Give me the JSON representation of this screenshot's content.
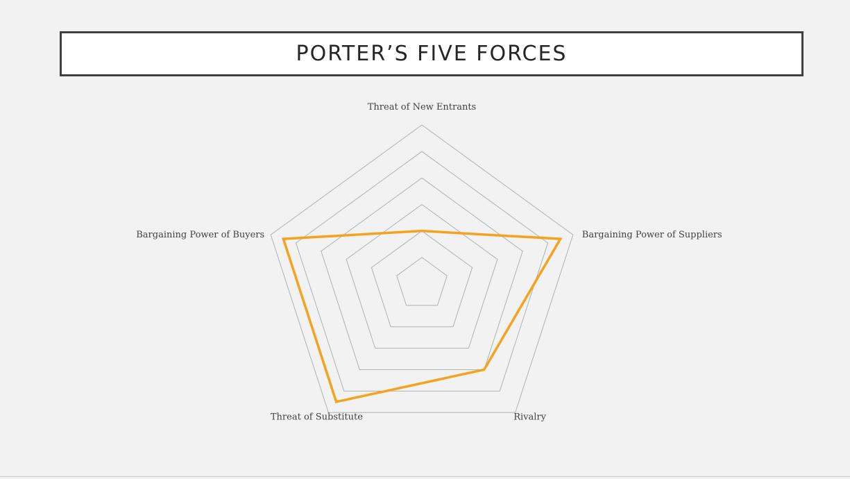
{
  "slide": {
    "title": "PORTER’S FIVE FORCES"
  },
  "chart_data": {
    "type": "radar",
    "categories": [
      "Threat of New Entrants",
      "Bargaining Power of Suppliers",
      "Rivalry",
      "Threat of Substitute",
      "Bargaining Power of Buyers"
    ],
    "series": [
      {
        "values": [
          2,
          5.5,
          4,
          5.5,
          5.5
        ],
        "color": "#f5a31f"
      }
    ],
    "rlim": [
      0,
      6
    ],
    "ring_step": 1,
    "grid": true,
    "grid_color": "#a9b4b4"
  }
}
